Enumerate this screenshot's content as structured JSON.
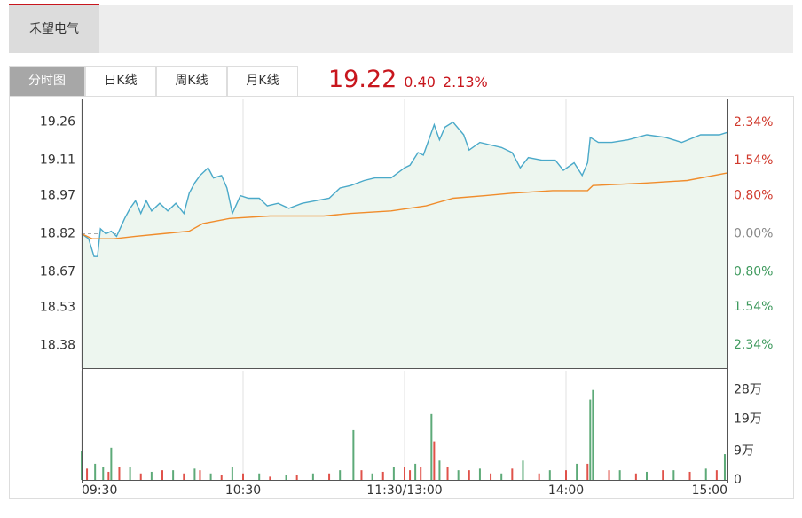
{
  "header": {
    "stock_name": "禾望电气",
    "tabs": [
      "分时图",
      "日K线",
      "周K线",
      "月K线"
    ],
    "price": "19.22",
    "change": "0.40",
    "change_pct": "2.13%"
  },
  "chart_data": [
    {
      "type": "line",
      "xlim": [
        0,
        240
      ],
      "xticks": [
        {
          "value": 0,
          "label": "09:30"
        },
        {
          "value": 60,
          "label": "10:30"
        },
        {
          "value": 120,
          "label": "11:30/13:00"
        },
        {
          "value": 180,
          "label": "14:00"
        },
        {
          "value": 240,
          "label": "15:00"
        }
      ],
      "ylim": [
        18.29,
        19.35
      ],
      "yticks": [
        19.26,
        19.11,
        18.97,
        18.82,
        18.67,
        18.53,
        18.38
      ],
      "y2lim": [
        -2.82,
        2.82
      ],
      "y2ticks": [
        {
          "value": 2.34,
          "label": "2.34%"
        },
        {
          "value": 1.54,
          "label": "1.54%"
        },
        {
          "value": 0.8,
          "label": "0.80%"
        },
        {
          "value": 0,
          "label": "0.00%"
        },
        {
          "value": -0.8,
          "label": "0.80%"
        },
        {
          "value": -1.54,
          "label": "1.54%"
        },
        {
          "value": -2.34,
          "label": "2.34%"
        }
      ],
      "series": [
        {
          "color": "#4aa9c9",
          "x": [
            0,
            2.6,
            4.6,
            5.9,
            7,
            9,
            11,
            13,
            16,
            18,
            20,
            22,
            24,
            26,
            29,
            32,
            35,
            38,
            40,
            42,
            44,
            47,
            49,
            52,
            54,
            56,
            59,
            62,
            66,
            69,
            73,
            77,
            82,
            87,
            92,
            96,
            100,
            105,
            109,
            115,
            120,
            122,
            125,
            127,
            131,
            133,
            135,
            138,
            142,
            144,
            148,
            152,
            156,
            160,
            163,
            166,
            171,
            176,
            179,
            183,
            186,
            188,
            189,
            192,
            197,
            203,
            210,
            217,
            223,
            230,
            237,
            240
          ],
          "values": [
            18.82,
            18.8,
            18.73,
            18.73,
            18.84,
            18.82,
            18.83,
            18.81,
            18.88,
            18.92,
            18.95,
            18.9,
            18.95,
            18.91,
            18.94,
            18.91,
            18.94,
            18.9,
            18.98,
            19.02,
            19.05,
            19.08,
            19.04,
            19.05,
            19.0,
            18.9,
            18.97,
            18.96,
            18.96,
            18.93,
            18.94,
            18.92,
            18.94,
            18.95,
            18.96,
            19.0,
            19.01,
            19.03,
            19.04,
            19.04,
            19.08,
            19.09,
            19.14,
            19.13,
            19.25,
            19.19,
            19.24,
            19.26,
            19.21,
            19.15,
            19.18,
            19.17,
            19.16,
            19.14,
            19.08,
            19.12,
            19.11,
            19.11,
            19.07,
            19.1,
            19.05,
            19.1,
            19.2,
            19.18,
            19.18,
            19.19,
            19.21,
            19.2,
            19.18,
            19.21,
            19.21,
            19.22
          ]
        },
        {
          "color": "#f08c2b",
          "x": [
            0,
            4,
            12,
            20,
            30,
            40,
            45,
            55,
            70,
            90,
            100,
            115,
            128,
            138,
            150,
            160,
            175,
            188,
            190,
            210,
            225,
            240
          ],
          "values": [
            18.82,
            18.8,
            18.8,
            18.81,
            18.82,
            18.83,
            18.86,
            18.88,
            18.89,
            18.89,
            18.9,
            18.91,
            18.93,
            18.96,
            18.97,
            18.98,
            18.99,
            18.99,
            19.01,
            19.02,
            19.03,
            19.06
          ]
        }
      ]
    },
    {
      "type": "bar",
      "xlim": [
        0,
        240
      ],
      "ylim": [
        0,
        34
      ],
      "yticks": [
        {
          "value": 28,
          "label": "28万"
        },
        {
          "value": 19,
          "label": "19万"
        },
        {
          "value": 9,
          "label": "9万"
        },
        0
      ],
      "series": [
        {
          "color": "#e0524a",
          "x": [
            2,
            10,
            14,
            22,
            30,
            38,
            44,
            52,
            60,
            70,
            80,
            92,
            104,
            112,
            120,
            122,
            126,
            131,
            136,
            144,
            152,
            160,
            170,
            180,
            188,
            196,
            206,
            216,
            226,
            236
          ],
          "values": [
            3.5,
            2.5,
            4,
            2,
            3,
            2,
            3,
            1.5,
            2,
            1,
            1.5,
            2,
            3,
            2.5,
            4,
            3,
            4,
            12,
            4,
            3,
            2,
            3.5,
            2,
            3,
            5,
            3,
            2,
            3,
            2.5,
            3
          ]
        },
        {
          "color": "#5daa78",
          "x": [
            0,
            5,
            8,
            11,
            18,
            26,
            34,
            42,
            48,
            56,
            66,
            76,
            86,
            96,
            101,
            108,
            116,
            124,
            130,
            133,
            140,
            148,
            156,
            164,
            174,
            184,
            189,
            190,
            200,
            210,
            220,
            232,
            239
          ],
          "values": [
            9,
            5,
            4,
            10,
            4,
            2.5,
            3,
            3.5,
            2,
            4,
            2,
            1.5,
            2,
            3,
            15.5,
            2,
            4,
            5,
            20.5,
            6,
            3,
            3.5,
            2,
            6,
            3,
            5,
            25,
            28,
            3,
            2.5,
            3,
            3.5,
            8
          ]
        }
      ]
    }
  ]
}
